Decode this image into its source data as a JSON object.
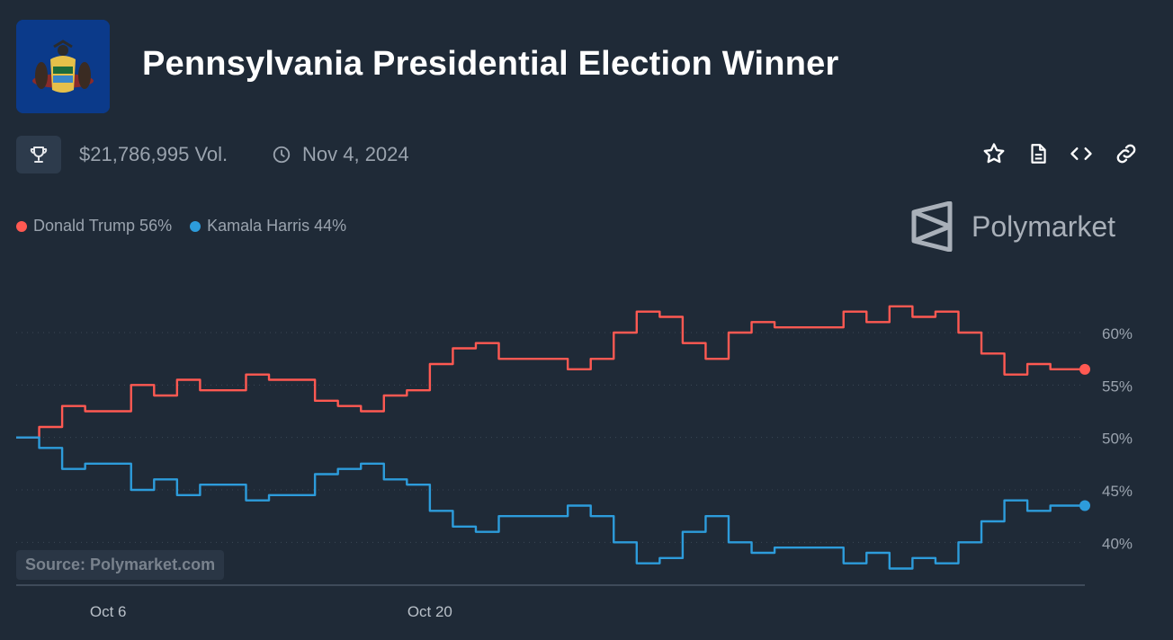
{
  "header": {
    "title": "Pennsylvania Presidential Election Winner",
    "volume": "$21,786,995 Vol.",
    "date": "Nov 4, 2024"
  },
  "icons": {
    "flag": "pennsylvania-flag",
    "trophy": "trophy-icon",
    "clock": "clock-icon",
    "actions": [
      "star-icon",
      "document-icon",
      "code-icon",
      "link-icon"
    ]
  },
  "brand": {
    "name": "Polymarket"
  },
  "source": "Source: Polymarket.com",
  "colors": {
    "trump": "#ff5952",
    "harris": "#2d9cdb",
    "background": "#1f2a37"
  },
  "chart_data": {
    "type": "line",
    "ylim": [
      36,
      66
    ],
    "yticks": [
      40,
      45,
      50,
      55,
      60
    ],
    "ytick_labels": [
      "40%",
      "45%",
      "50%",
      "55%",
      "60%"
    ],
    "xtick_labels": [
      "Oct 6",
      "Oct 20"
    ],
    "xticks_day": [
      6,
      20
    ],
    "x_start_day": 2,
    "x_end_day": 48.5,
    "grid": true,
    "series": [
      {
        "name": "Donald Trump",
        "legend": "Donald Trump 56%",
        "color": "#ff5952",
        "x": [
          2,
          3,
          4,
          5,
          6,
          7,
          8,
          9,
          10,
          11,
          12,
          13,
          14,
          15,
          16,
          17,
          18,
          19,
          20,
          21,
          22,
          23,
          24,
          25,
          26,
          27,
          28,
          29,
          30,
          31,
          32,
          33,
          34,
          35,
          36,
          37,
          38,
          39,
          40,
          41,
          42,
          43,
          44,
          45,
          46,
          47,
          48
        ],
        "y": [
          50,
          51,
          53,
          52.5,
          52.5,
          55,
          54,
          55.5,
          54.5,
          54.5,
          56,
          55.5,
          55.5,
          53.5,
          53,
          52.5,
          54,
          54.5,
          57,
          58.5,
          59,
          57.5,
          57.5,
          57.5,
          56.5,
          57.5,
          60,
          62,
          61.5,
          59,
          57.5,
          60,
          61,
          60.5,
          60.5,
          60.5,
          62,
          61,
          62.5,
          61.5,
          62,
          60,
          58,
          56,
          57,
          56.5,
          56.5
        ]
      },
      {
        "name": "Kamala Harris",
        "legend": "Kamala Harris 44%",
        "color": "#2d9cdb",
        "x": [
          2,
          3,
          4,
          5,
          6,
          7,
          8,
          9,
          10,
          11,
          12,
          13,
          14,
          15,
          16,
          17,
          18,
          19,
          20,
          21,
          22,
          23,
          24,
          25,
          26,
          27,
          28,
          29,
          30,
          31,
          32,
          33,
          34,
          35,
          36,
          37,
          38,
          39,
          40,
          41,
          42,
          43,
          44,
          45,
          46,
          47,
          48
        ],
        "y": [
          50,
          49,
          47,
          47.5,
          47.5,
          45,
          46,
          44.5,
          45.5,
          45.5,
          44,
          44.5,
          44.5,
          46.5,
          47,
          47.5,
          46,
          45.5,
          43,
          41.5,
          41,
          42.5,
          42.5,
          42.5,
          43.5,
          42.5,
          40,
          38,
          38.5,
          41,
          42.5,
          40,
          39,
          39.5,
          39.5,
          39.5,
          38,
          39,
          37.5,
          38.5,
          38,
          40,
          42,
          44,
          43,
          43.5,
          43.5
        ]
      }
    ]
  }
}
